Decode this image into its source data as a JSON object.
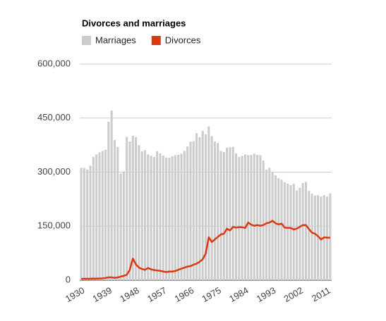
{
  "chart_data": {
    "type": "bar-line",
    "title": "Divorces and marriages",
    "categories": [
      "1930",
      null,
      null,
      null,
      null,
      null,
      null,
      null,
      null,
      "1939",
      null,
      null,
      null,
      null,
      null,
      null,
      null,
      null,
      "1948",
      null,
      null,
      null,
      null,
      null,
      null,
      null,
      null,
      "1957",
      null,
      null,
      null,
      null,
      null,
      null,
      null,
      null,
      "1966",
      null,
      null,
      null,
      null,
      null,
      null,
      null,
      null,
      "1975",
      null,
      null,
      null,
      null,
      null,
      null,
      null,
      null,
      "1984",
      null,
      null,
      null,
      null,
      null,
      null,
      null,
      null,
      "1993",
      null,
      null,
      null,
      null,
      null,
      null,
      null,
      null,
      "2002",
      null,
      null,
      null,
      null,
      null,
      null,
      null,
      null,
      "2011",
      null
    ],
    "series": [
      {
        "name": "Marriages",
        "color": "#cccccc",
        "type": "bar",
        "values": [
          312000,
          311000,
          307000,
          318000,
          342000,
          349000,
          355000,
          359000,
          362000,
          440000,
          471000,
          389000,
          370000,
          296000,
          302000,
          398000,
          385000,
          401000,
          397000,
          375000,
          358000,
          361000,
          349000,
          345000,
          342000,
          358000,
          352000,
          346000,
          340000,
          340000,
          344000,
          347000,
          348000,
          351000,
          359000,
          371000,
          385000,
          386000,
          408000,
          397000,
          415000,
          405000,
          427000,
          400000,
          385000,
          381000,
          359000,
          356000,
          368000,
          369000,
          370000,
          352000,
          342000,
          345000,
          349000,
          347000,
          348000,
          351000,
          348000,
          347000,
          332000,
          307000,
          312000,
          299000,
          291000,
          283000,
          279000,
          272000,
          268000,
          264000,
          268000,
          249000,
          256000,
          270000,
          273000,
          248000,
          240000,
          235000,
          236000,
          232000,
          236000,
          232000,
          241000
        ]
      },
      {
        "name": "Divorces",
        "color": "#dc3912",
        "type": "line",
        "values": [
          3600,
          3800,
          3900,
          4000,
          4300,
          4100,
          4700,
          5000,
          6000,
          7900,
          7800,
          6400,
          7600,
          9800,
          12000,
          15000,
          29000,
          60000,
          44000,
          35000,
          31000,
          28800,
          33900,
          30000,
          28000,
          27000,
          26000,
          24000,
          22600,
          24000,
          23900,
          25400,
          28900,
          32000,
          34900,
          37800,
          39000,
          43000,
          45800,
          51000,
          58000,
          74000,
          119000,
          106000,
          113000,
          120000,
          127000,
          129000,
          143000,
          138000,
          148000,
          146000,
          147000,
          147000,
          145000,
          160000,
          154000,
          151000,
          153000,
          151000,
          153000,
          158000,
          160000,
          165000,
          158000,
          155000,
          157000,
          146000,
          145000,
          145000,
          141000,
          143000,
          148000,
          153000,
          153000,
          142000,
          132000,
          129000,
          122000,
          113000,
          119000,
          118000,
          118000
        ]
      }
    ],
    "ylim": [
      0,
      600000
    ],
    "yticks": [
      0,
      {
        "value": 150000,
        "label": "150,000"
      },
      {
        "value": 300000,
        "label": "300,000"
      },
      {
        "value": 450000,
        "label": "450,000"
      },
      {
        "value": 600000,
        "label": "600,000"
      }
    ],
    "grid": true,
    "legend": "top"
  }
}
